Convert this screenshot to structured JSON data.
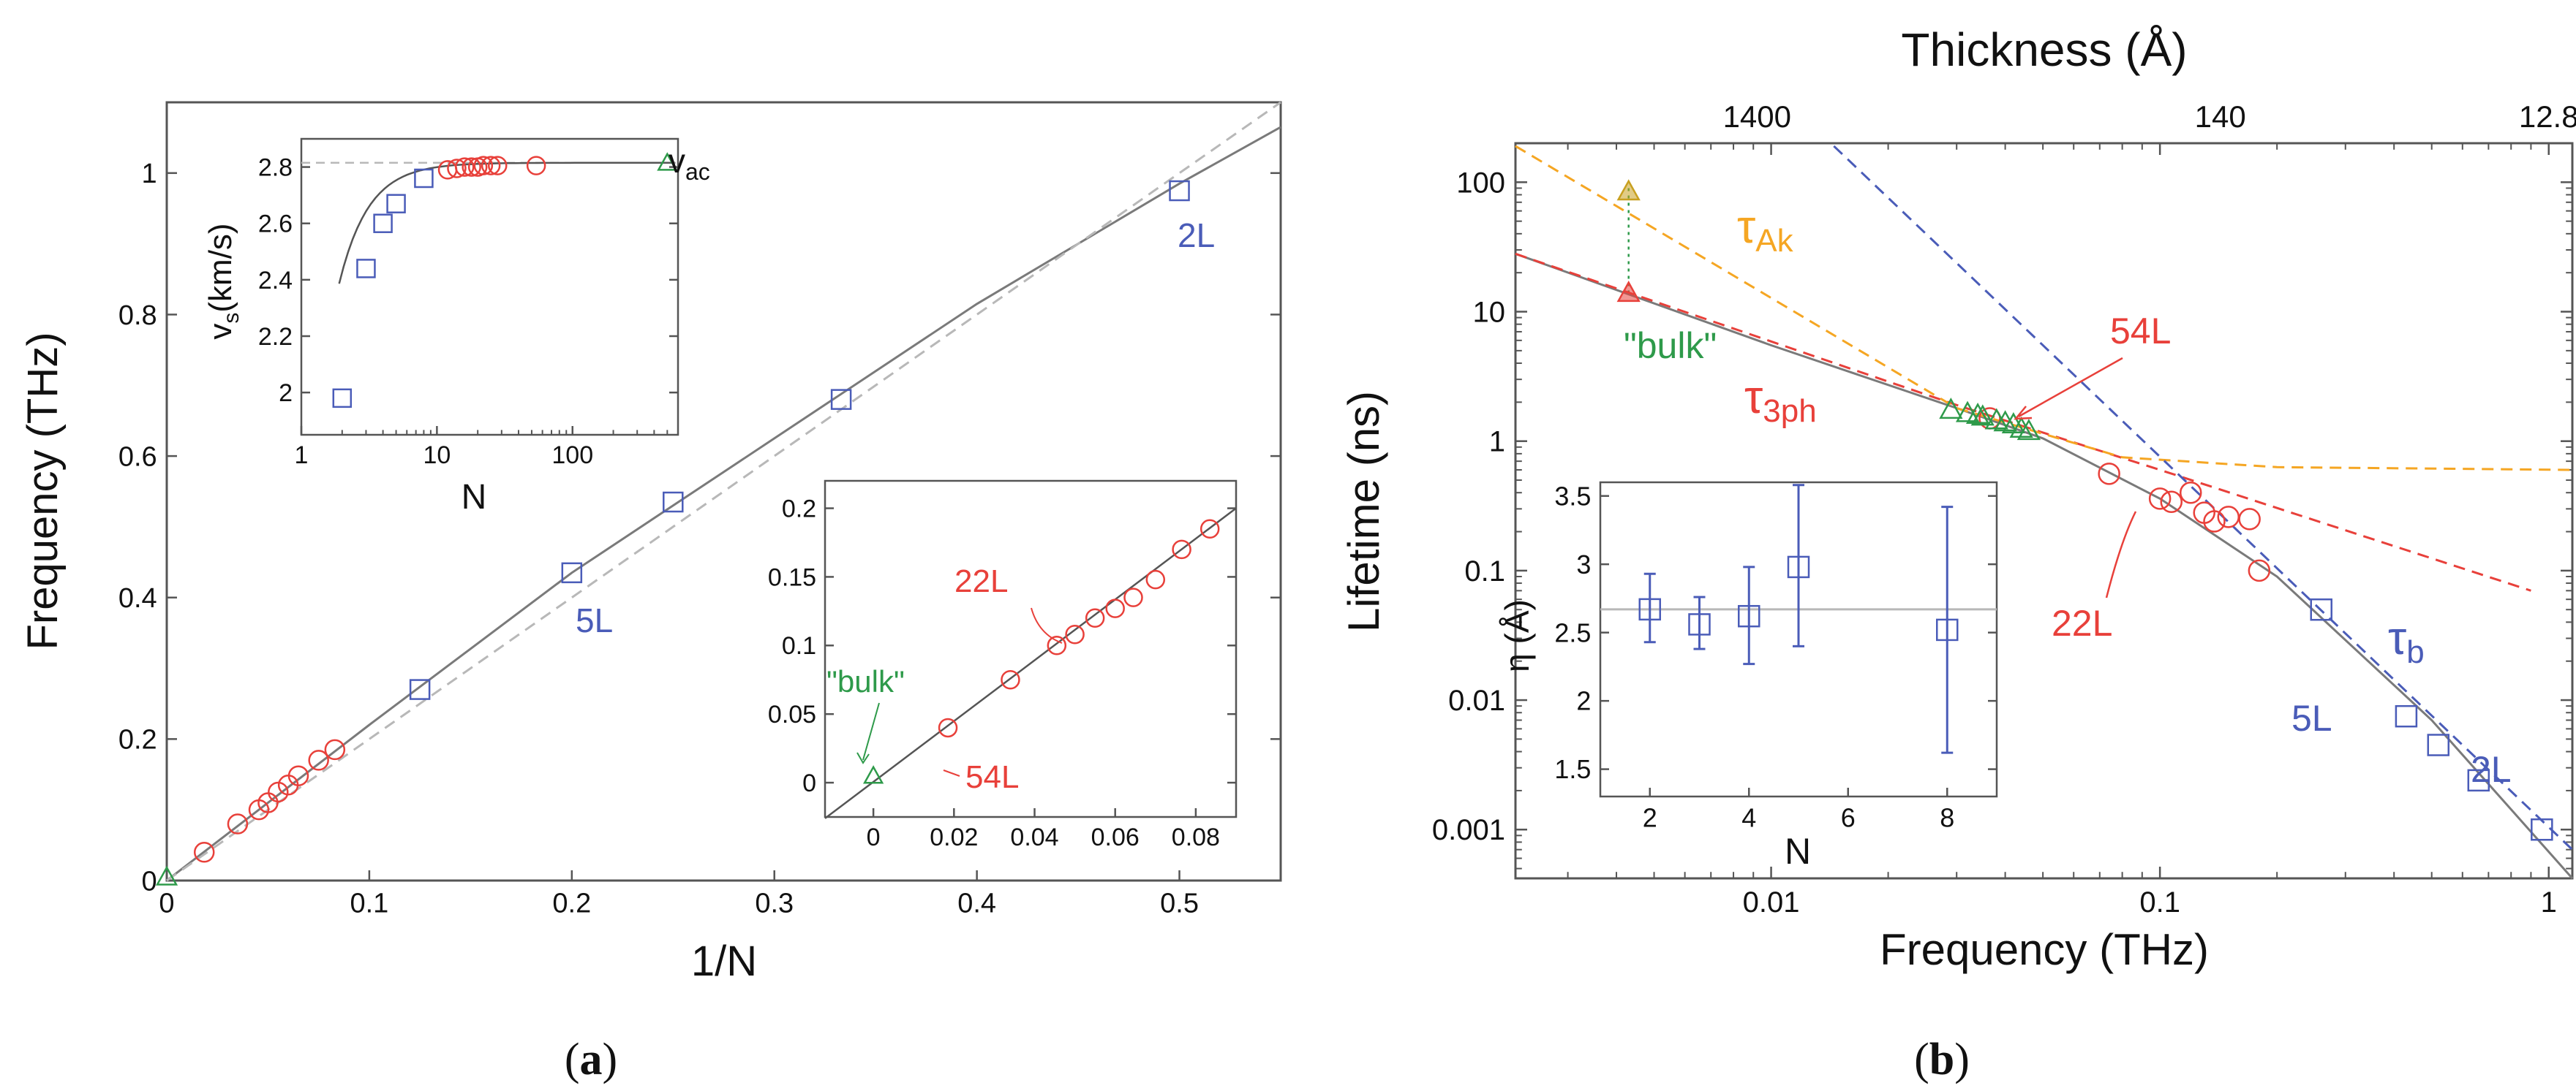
{
  "panel_labels": {
    "a": {
      "open": "(",
      "letter": "a",
      "close": ")"
    },
    "b": {
      "open": "(",
      "letter": "b",
      "close": ")"
    }
  },
  "colors": {
    "blue": "#4a5cb8",
    "red": "#e8403a",
    "green": "#2e9a4a",
    "orange": "#f5a623",
    "gold": "#c8a020",
    "gray": "#7a7a7a",
    "lightgray": "#b8b8b8"
  },
  "chart_data": [
    {
      "id": "a-main",
      "type": "scatter",
      "title": "",
      "xlabel": "1/N",
      "ylabel": "Frequency (THz)",
      "xlim": [
        0,
        0.55
      ],
      "ylim": [
        0,
        1.1
      ],
      "xticks": [
        "0",
        "0.1",
        "0.2",
        "0.3",
        "0.4",
        "0.5"
      ],
      "xtick_values": [
        0,
        0.1,
        0.2,
        0.3,
        0.4,
        0.5
      ],
      "yticks": [
        "0",
        "0.2",
        "0.4",
        "0.6",
        "0.8",
        "1"
      ],
      "ytick_values": [
        0,
        0.2,
        0.4,
        0.6,
        0.8,
        1.0
      ],
      "series": [
        {
          "name": "blue squares",
          "marker": "square",
          "color": "blue",
          "x": [
            0.125,
            0.2,
            0.25,
            0.333,
            0.5
          ],
          "y": [
            0.27,
            0.435,
            0.535,
            0.68,
            0.975
          ]
        },
        {
          "name": "red circles",
          "marker": "circle",
          "color": "red",
          "x": [
            0.0185,
            0.035,
            0.0455,
            0.05,
            0.055,
            0.06,
            0.065,
            0.075,
            0.083
          ],
          "y": [
            0.04,
            0.08,
            0.1,
            0.11,
            0.125,
            0.135,
            0.148,
            0.17,
            0.185
          ]
        },
        {
          "name": "green triangle",
          "marker": "triangle",
          "color": "green",
          "x": [
            0.0
          ],
          "y": [
            0.005
          ]
        },
        {
          "name": "dispersion fit",
          "line": "solid",
          "color": "gray",
          "x": [
            0,
            0.1,
            0.2,
            0.3,
            0.4,
            0.5,
            0.55
          ],
          "y": [
            0,
            0.22,
            0.435,
            0.625,
            0.815,
            0.985,
            1.065
          ]
        },
        {
          "name": "linear acoustic",
          "line": "dashed",
          "color": "lightgray",
          "x": [
            0,
            0.55
          ],
          "y": [
            0,
            1.1
          ]
        }
      ],
      "annotations": [
        {
          "text": "2L",
          "color": "blue",
          "x": 0.5,
          "y": 0.975
        },
        {
          "text": "5L",
          "color": "blue",
          "x": 0.2,
          "y": 0.435
        }
      ]
    },
    {
      "id": "a-inset-vs",
      "type": "scatter",
      "xlabel": "N",
      "ylabel_main": "v",
      "ylabel_sub": "s",
      "ylabel_units": "(km/s)",
      "xscale": "log",
      "xlim": [
        1,
        600
      ],
      "ylim": [
        1.85,
        2.9
      ],
      "xticks": [
        "1",
        "10",
        "100"
      ],
      "xtick_values": [
        1,
        10,
        100
      ],
      "yticks": [
        "2",
        "2.2",
        "2.4",
        "2.6",
        "2.8"
      ],
      "ytick_values": [
        2.0,
        2.2,
        2.4,
        2.6,
        2.8
      ],
      "series": [
        {
          "name": "blue squares",
          "marker": "square",
          "color": "blue",
          "x": [
            2,
            3,
            4,
            5,
            8
          ],
          "y": [
            1.98,
            2.44,
            2.6,
            2.67,
            2.76
          ]
        },
        {
          "name": "red circles",
          "marker": "circle",
          "color": "red",
          "x": [
            12,
            14,
            16,
            18,
            20,
            22,
            25,
            28,
            54
          ],
          "y": [
            2.79,
            2.795,
            2.8,
            2.8,
            2.8,
            2.805,
            2.805,
            2.805,
            2.805
          ]
        },
        {
          "name": "green triangle",
          "marker": "triangle",
          "color": "green",
          "x": [
            500
          ],
          "y": [
            2.815
          ]
        }
      ],
      "asymptote": 2.815,
      "annotation": {
        "main": "v",
        "sub": "ac"
      }
    },
    {
      "id": "a-inset-zoom",
      "type": "scatter",
      "xlim": [
        -0.012,
        0.09
      ],
      "ylim": [
        -0.025,
        0.22
      ],
      "xticks": [
        "0",
        "0.02",
        "0.04",
        "0.06",
        "0.08"
      ],
      "xtick_values": [
        0,
        0.02,
        0.04,
        0.06,
        0.08
      ],
      "yticks": [
        "0",
        "0.05",
        "0.1",
        "0.15",
        "0.2"
      ],
      "ytick_values": [
        0,
        0.05,
        0.1,
        0.15,
        0.2
      ],
      "series": [
        {
          "name": "red circles",
          "marker": "circle",
          "color": "red",
          "x": [
            0.0185,
            0.034,
            0.0455,
            0.05,
            0.055,
            0.06,
            0.0645,
            0.07,
            0.0765,
            0.0835
          ],
          "y": [
            0.04,
            0.075,
            0.1,
            0.108,
            0.12,
            0.127,
            0.135,
            0.148,
            0.17,
            0.185
          ]
        },
        {
          "name": "green triangle",
          "marker": "triangle",
          "color": "green",
          "x": [
            0.0
          ],
          "y": [
            0.005
          ]
        }
      ],
      "annotations": [
        {
          "text": "22L",
          "color": "red"
        },
        {
          "text": "\"bulk\"",
          "color": "green"
        },
        {
          "text": "54L",
          "color": "red"
        }
      ]
    },
    {
      "id": "b-main",
      "type": "scatter",
      "xscale": "log",
      "yscale": "log",
      "xlabel": "Frequency (THz)",
      "ylabel": "Lifetime (ns)",
      "top_xlabel": "Thickness (Å)",
      "xlim": [
        0.0022,
        1.15
      ],
      "ylim": [
        0.00042,
        200
      ],
      "xticks": [
        "0.01",
        "0.1",
        "1"
      ],
      "xtick_values": [
        0.01,
        0.1,
        1
      ],
      "yticks": [
        "0.001",
        "0.01",
        "0.1",
        "1",
        "10",
        "100"
      ],
      "ytick_values": [
        0.001,
        0.01,
        0.1,
        1,
        10,
        100
      ],
      "top_xticks": [
        "1400",
        "140",
        "12.8"
      ],
      "top_xtick_freqs": [
        0.0092,
        0.143,
        1.0
      ],
      "series": [
        {
          "name": "blue squares",
          "marker": "square",
          "color": "blue",
          "x": [
            0.26,
            0.43,
            0.52,
            0.66,
            0.96
          ],
          "y": [
            0.05,
            0.0075,
            0.0045,
            0.0024,
            0.001
          ]
        },
        {
          "name": "red circles",
          "marker": "circle",
          "color": "red",
          "x": [
            0.0365,
            0.074,
            0.1,
            0.107,
            0.12,
            0.13,
            0.138,
            0.15,
            0.17,
            0.18
          ],
          "y": [
            1.5,
            0.56,
            0.36,
            0.34,
            0.4,
            0.28,
            0.24,
            0.26,
            0.25,
            0.1
          ]
        },
        {
          "name": "green triangles",
          "marker": "triangle",
          "color": "green",
          "x": [
            0.029,
            0.032,
            0.034,
            0.035,
            0.038,
            0.04,
            0.042,
            0.044,
            0.046
          ],
          "y": [
            1.75,
            1.65,
            1.6,
            1.55,
            1.45,
            1.4,
            1.35,
            1.25,
            1.2
          ]
        },
        {
          "name": "bulk tau_3ph",
          "marker": "triangle-fill",
          "color": "red",
          "x": [
            0.0043
          ],
          "y": [
            14
          ]
        },
        {
          "name": "bulk tau_Ak",
          "marker": "triangle-fill",
          "color": "gold",
          "x": [
            0.0043
          ],
          "y": [
            85
          ]
        },
        {
          "name": "total fit",
          "line": "solid",
          "color": "gray",
          "x": [
            0.0022,
            0.01,
            0.03,
            0.05,
            0.1,
            0.2,
            0.5,
            1.15
          ],
          "y": [
            28,
            5.5,
            1.8,
            1.05,
            0.36,
            0.09,
            0.007,
            0.00042
          ]
        },
        {
          "name": "tau_3ph fit",
          "line": "dashed",
          "color": "red",
          "x": [
            0.0022,
            0.03,
            0.1,
            0.9
          ],
          "y": [
            28,
            1.9,
            0.6,
            0.07
          ]
        },
        {
          "name": "tau_Ak fit",
          "line": "dashed",
          "color": "orange",
          "x": [
            0.0022,
            0.03,
            0.08,
            0.2,
            1.15
          ],
          "y": [
            190,
            1.8,
            0.75,
            0.63,
            0.6
          ]
        },
        {
          "name": "tau_b fit",
          "line": "dashed",
          "color": "blue",
          "x": [
            0.0145,
            1.15
          ],
          "y": [
            190,
            0.0007
          ]
        }
      ],
      "annotations": [
        {
          "text": "τ",
          "sub": "Ak",
          "color": "orange"
        },
        {
          "text": "\"bulk\"",
          "color": "green"
        },
        {
          "text": "54L",
          "color": "red"
        },
        {
          "text": "τ",
          "sub": "3ph",
          "color": "red"
        },
        {
          "text": "22L",
          "color": "red"
        },
        {
          "text": "τ",
          "sub": "b",
          "color": "blue"
        },
        {
          "text": "5L",
          "color": "blue"
        },
        {
          "text": "2L",
          "color": "blue"
        }
      ]
    },
    {
      "id": "b-inset-eta",
      "type": "scatter",
      "xlabel": "N",
      "ylabel": "η (Å)",
      "xlim": [
        1,
        9
      ],
      "ylim": [
        1.3,
        3.6
      ],
      "xticks": [
        "2",
        "4",
        "6",
        "8"
      ],
      "xtick_values": [
        2,
        4,
        6,
        8
      ],
      "yticks": [
        "1.5",
        "2",
        "2.5",
        "3",
        "3.5"
      ],
      "ytick_values": [
        1.5,
        2.0,
        2.5,
        3.0,
        3.5
      ],
      "mean": 2.67,
      "series": [
        {
          "name": "eta",
          "marker": "square",
          "color": "blue",
          "x": [
            2,
            3,
            4,
            5,
            8
          ],
          "y": [
            2.67,
            2.56,
            2.62,
            2.98,
            2.52
          ],
          "err_low": [
            2.43,
            2.38,
            2.27,
            2.4,
            1.62
          ],
          "err_high": [
            2.93,
            2.76,
            2.98,
            3.58,
            3.42
          ]
        }
      ]
    }
  ]
}
